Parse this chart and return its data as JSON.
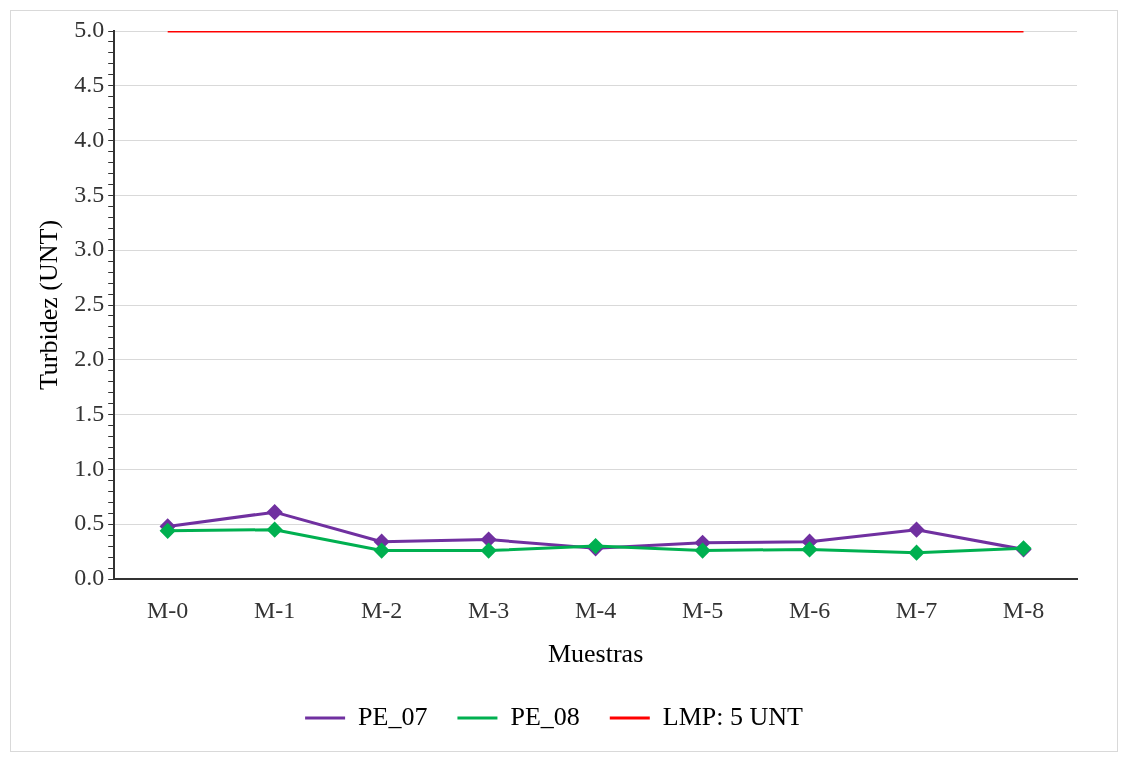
{
  "chart_data": {
    "type": "line",
    "xlabel": "Muestras",
    "ylabel": "Turbidez (UNT)",
    "categories": [
      "M-0",
      "M-1",
      "M-2",
      "M-3",
      "M-4",
      "M-5",
      "M-6",
      "M-7",
      "M-8"
    ],
    "series": [
      {
        "name": "PE_07",
        "color": "#7030a0",
        "marker": "diamond",
        "values": [
          0.48,
          0.61,
          0.34,
          0.36,
          0.28,
          0.33,
          0.34,
          0.45,
          0.27
        ]
      },
      {
        "name": "PE_08",
        "color": "#00b050",
        "marker": "diamond",
        "values": [
          0.44,
          0.45,
          0.26,
          0.26,
          0.3,
          0.26,
          0.27,
          0.24,
          0.28
        ]
      },
      {
        "name": "LMP: 5 UNT",
        "color": "#ff0000",
        "marker": "none",
        "values": [
          5,
          5,
          5,
          5,
          5,
          5,
          5,
          5,
          5
        ]
      }
    ],
    "ylim": [
      0,
      5
    ],
    "yticks": [
      {
        "value": 0,
        "label": "0.0"
      },
      {
        "value": 0.1,
        "label": null
      },
      {
        "value": 0.2,
        "label": null
      },
      {
        "value": 0.3,
        "label": null
      },
      {
        "value": 0.4,
        "label": null
      },
      {
        "value": 0.5,
        "label": "0.5"
      },
      {
        "value": 0.6,
        "label": null
      },
      {
        "value": 0.7,
        "label": null
      },
      {
        "value": 0.8,
        "label": null
      },
      {
        "value": 0.9,
        "label": null
      },
      {
        "value": 1,
        "label": "1.0"
      },
      {
        "value": 1.1,
        "label": null
      },
      {
        "value": 1.2,
        "label": null
      },
      {
        "value": 1.3,
        "label": null
      },
      {
        "value": 1.4,
        "label": null
      },
      {
        "value": 1.5,
        "label": "1.5"
      },
      {
        "value": 1.6,
        "label": null
      },
      {
        "value": 1.7,
        "label": null
      },
      {
        "value": 1.8,
        "label": null
      },
      {
        "value": 1.9,
        "label": null
      },
      {
        "value": 2,
        "label": "2.0"
      },
      {
        "value": 2.1,
        "label": null
      },
      {
        "value": 2.2,
        "label": null
      },
      {
        "value": 2.3,
        "label": null
      },
      {
        "value": 2.4,
        "label": null
      },
      {
        "value": 2.5,
        "label": "2.5"
      },
      {
        "value": 2.6,
        "label": null
      },
      {
        "value": 2.7,
        "label": null
      },
      {
        "value": 2.8,
        "label": null
      },
      {
        "value": 2.9,
        "label": null
      },
      {
        "value": 3,
        "label": "3.0"
      },
      {
        "value": 3.1,
        "label": null
      },
      {
        "value": 3.2,
        "label": null
      },
      {
        "value": 3.3,
        "label": null
      },
      {
        "value": 3.4,
        "label": null
      },
      {
        "value": 3.5,
        "label": "3.5"
      },
      {
        "value": 3.6,
        "label": null
      },
      {
        "value": 3.7,
        "label": null
      },
      {
        "value": 3.8,
        "label": null
      },
      {
        "value": 3.9,
        "label": null
      },
      {
        "value": 4,
        "label": "4.0"
      },
      {
        "value": 4.1,
        "label": null
      },
      {
        "value": 4.2,
        "label": null
      },
      {
        "value": 4.3,
        "label": null
      },
      {
        "value": 4.4,
        "label": null
      },
      {
        "value": 4.5,
        "label": "4.5"
      },
      {
        "value": 4.6,
        "label": null
      },
      {
        "value": 4.7,
        "label": null
      },
      {
        "value": 4.8,
        "label": null
      },
      {
        "value": 4.9,
        "label": null
      },
      {
        "value": 5,
        "label": "5.0"
      }
    ],
    "grid": "y",
    "legend": "bottom",
    "line_style": "solid"
  }
}
